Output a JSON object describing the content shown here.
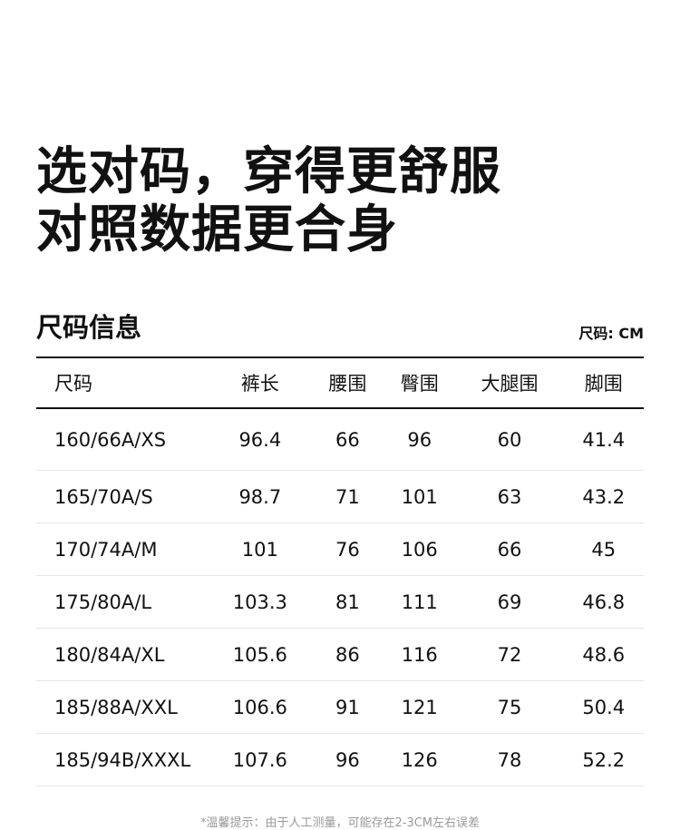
{
  "headline": [
    "选对码，穿得更舒服",
    "对照数据更合身"
  ],
  "section_title": "尺码信息",
  "unit": "尺码: CM",
  "columns": [
    "尺码",
    "裤长",
    "腰围",
    "臀围",
    "大腿围",
    "脚围"
  ],
  "rows": [
    [
      "160/66A/XS",
      "96.4",
      "66",
      "96",
      "60",
      "41.4"
    ],
    [
      "165/70A/S",
      "98.7",
      "71",
      "101",
      "63",
      "43.2"
    ],
    [
      "170/74A/M",
      "101",
      "76",
      "106",
      "66",
      "45"
    ],
    [
      "175/80A/L",
      "103.3",
      "81",
      "111",
      "69",
      "46.8"
    ],
    [
      "180/84A/XL",
      "105.6",
      "86",
      "116",
      "72",
      "48.6"
    ],
    [
      "185/88A/XXL",
      "106.6",
      "91",
      "121",
      "75",
      "50.4"
    ],
    [
      "185/94B/XXXL",
      "107.6",
      "96",
      "126",
      "78",
      "52.2"
    ]
  ],
  "note": "*温馨提示：由于人工测量，可能存在2-3CM左右误差"
}
